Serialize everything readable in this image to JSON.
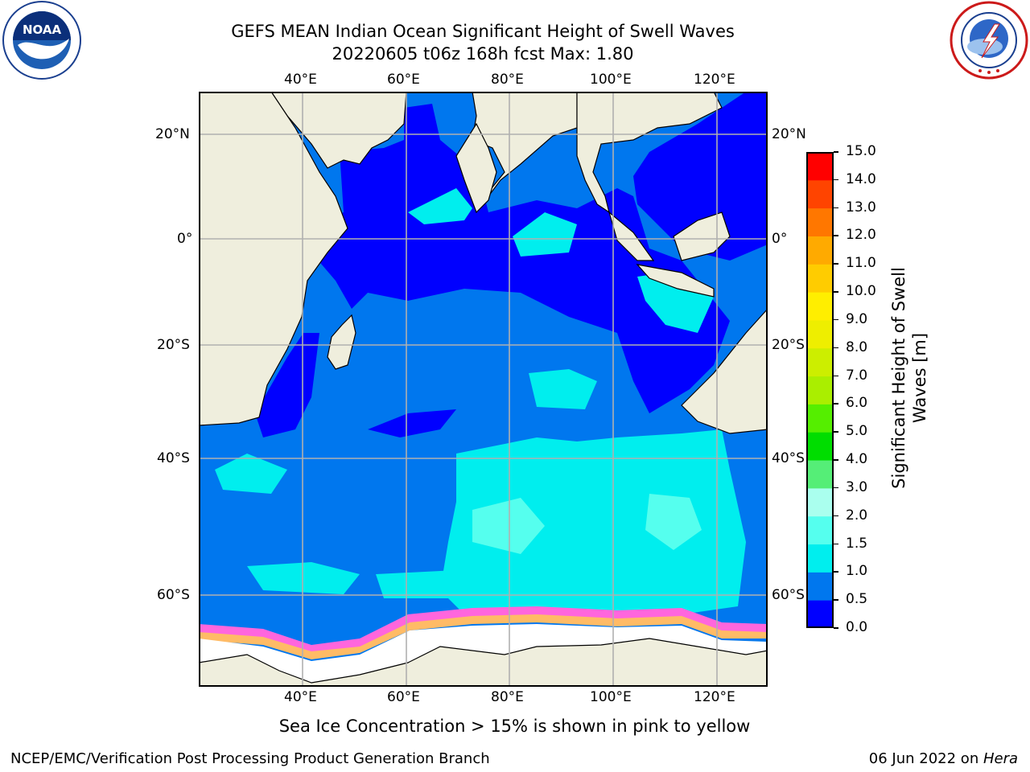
{
  "header": {
    "title_line1": "GEFS MEAN Indian Ocean Significant Height of Swell Waves",
    "title_line2": "20220605 t06z 168h fcst   Max: 1.80"
  },
  "logos": {
    "noaa": {
      "text": "NOAA",
      "ring_text": "NATIONAL OCEANIC AND ATMOSPHERIC ADMINISTRATION · U.S. DEPARTMENT OF COMMERCE"
    },
    "nws": {
      "ring_text": "NATIONAL WEATHER SERVICE"
    }
  },
  "map": {
    "lon_ticks": [
      "40°E",
      "60°E",
      "80°E",
      "100°E",
      "120°E"
    ],
    "lat_ticks": [
      "20°N",
      "0°",
      "20°S",
      "40°S",
      "60°S"
    ],
    "colors": {
      "land": "#efeedd",
      "ice_free_white": "#ffffff",
      "grid": "#b0b0b0"
    }
  },
  "colorbar": {
    "label": "Significant Height of Swell Waves [m]",
    "ticks": [
      "0.0",
      "0.5",
      "1.0",
      "1.5",
      "2.0",
      "3.0",
      "4.0",
      "5.0",
      "6.0",
      "7.0",
      "8.0",
      "9.0",
      "10.0",
      "11.0",
      "12.0",
      "13.0",
      "14.0",
      "15.0"
    ],
    "colors": [
      "#0000ff",
      "#0077ee",
      "#00eeee",
      "#55ffee",
      "#aaffee",
      "#55ee77",
      "#00dd00",
      "#55ee00",
      "#aaee00",
      "#ccee00",
      "#eeee00",
      "#ffee00",
      "#ffcc00",
      "#ffaa00",
      "#ff7700",
      "#ff4400",
      "#ff0000"
    ]
  },
  "note": "Sea Ice Concentration > 15% is shown in pink to yellow",
  "footer": {
    "left": "NCEP/EMC/Verification Post Processing Product Generation Branch",
    "date": "06 Jun 2022 on ",
    "host": "Hera"
  }
}
